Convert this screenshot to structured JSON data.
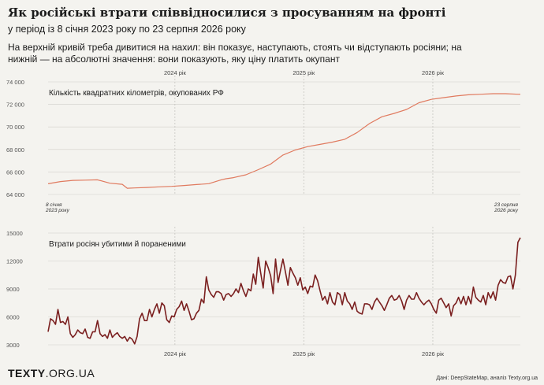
{
  "header": {
    "title": "Як російські втрати співвідносилися з просуванням на фронті",
    "subtitle": "у період із 8 січня 2023 року по 23 серпня 2026 року",
    "description": "На верхній кривій треба дивитися на нахил: він показує, наступають, стоять чи відступають росіяни; на нижній — на абсолютні значення: вони показують, яку ціну платить окупант"
  },
  "footer": {
    "logo_bold": "TEXTY",
    "logo_light": ".ORG.UA",
    "source": "Дані: DeepStateMap, аналіз Texty.org.ua"
  },
  "colors": {
    "top_line": "#e07a5f",
    "bottom_line": "#7a1f1f",
    "grid": "#d0cfca"
  },
  "chart_data": [
    {
      "type": "line",
      "title": "Кількість квадратних кілометрів, окупованих РФ",
      "x_unit": "weeks from 8 січня 2023",
      "ylim": [
        64000,
        74000
      ],
      "yticks": [
        64000,
        66000,
        68000,
        70000,
        72000,
        74000
      ],
      "ytick_labels": [
        "64 000",
        "66 000",
        "68 000",
        "70 000",
        "72 000",
        "74 000"
      ],
      "year_labels": [
        {
          "label": "2024 рік",
          "week": 51.3
        },
        {
          "label": "2025 рік",
          "week": 103.4
        },
        {
          "label": "2026 рік",
          "week": 155.6
        }
      ],
      "annotations": {
        "start_line1": "8 січня",
        "start_line2": "2023 року",
        "end_line1": "23 серпня",
        "end_line2": "2026 року"
      },
      "grid": true,
      "x": [
        0,
        5,
        10,
        15,
        20,
        25,
        30,
        32,
        35,
        40,
        45,
        50,
        55,
        60,
        65,
        70,
        72,
        75,
        80,
        85,
        90,
        95,
        100,
        105,
        110,
        115,
        120,
        125,
        130,
        135,
        140,
        145,
        150,
        155,
        160,
        165,
        170,
        175,
        180,
        185,
        190,
        191
      ],
      "values": [
        64950,
        65150,
        65250,
        65270,
        65300,
        65000,
        64900,
        64550,
        64580,
        64620,
        64680,
        64720,
        64800,
        64880,
        64960,
        65300,
        65400,
        65500,
        65750,
        66200,
        66700,
        67500,
        67950,
        68250,
        68450,
        68650,
        68900,
        69500,
        70300,
        70900,
        71200,
        71550,
        72150,
        72450,
        72600,
        72750,
        72850,
        72900,
        72950,
        72950,
        72900,
        72900
      ]
    },
    {
      "type": "line",
      "title": "Втрати росіян убитими й пораненими",
      "x_unit": "weeks from 8 січня 2023",
      "ylim": [
        3000,
        15000
      ],
      "yticks": [
        3000,
        6000,
        9000,
        12000,
        15000
      ],
      "ytick_labels": [
        "3000",
        "6000",
        "9000",
        "12000",
        "15000"
      ],
      "year_labels": [
        {
          "label": "2024 рік",
          "week": 51.3
        },
        {
          "label": "2025 рік",
          "week": 103.4
        },
        {
          "label": "2026 рік",
          "week": 155.6
        }
      ],
      "grid": true,
      "values": [
        4400,
        5800,
        5600,
        5200,
        6800,
        5400,
        5500,
        5200,
        6000,
        4200,
        3800,
        4100,
        4600,
        4300,
        4200,
        4700,
        3800,
        3700,
        4400,
        4400,
        5600,
        4200,
        3900,
        4100,
        3700,
        4600,
        3800,
        4100,
        4300,
        3900,
        3700,
        3900,
        3400,
        3800,
        3600,
        3100,
        3900,
        5800,
        6400,
        5600,
        5600,
        6800,
        6000,
        6800,
        7400,
        6400,
        7500,
        7200,
        5700,
        5400,
        6100,
        6000,
        6800,
        7100,
        7700,
        6700,
        7400,
        6600,
        5700,
        5800,
        6400,
        6700,
        7900,
        7500,
        10300,
        8900,
        8400,
        8100,
        8700,
        8700,
        8500,
        7800,
        8400,
        8500,
        8200,
        8500,
        9000,
        8600,
        9600,
        8800,
        8200,
        9000,
        8800,
        10600,
        9500,
        12400,
        10700,
        9100,
        12000,
        11300,
        10400,
        8500,
        12200,
        9700,
        11000,
        12200,
        10800,
        9400,
        11300,
        10700,
        10200,
        9400,
        10200,
        8900,
        9200,
        8500,
        9300,
        9200,
        10500,
        9900,
        8800,
        7800,
        8200,
        7400,
        8600,
        7600,
        7300,
        8600,
        8400,
        7300,
        8600,
        7700,
        7400,
        6800,
        7600,
        6600,
        6400,
        6300,
        7400,
        7400,
        7300,
        6800,
        7600,
        8000,
        7600,
        7200,
        6700,
        7300,
        8000,
        8300,
        7800,
        7900,
        8300,
        7700,
        6800,
        7800,
        8300,
        7900,
        7900,
        8600,
        8000,
        7600,
        7300,
        7600,
        7800,
        7400,
        6800,
        6400,
        7800,
        8000,
        7500,
        7000,
        7400,
        6100,
        7200,
        7500,
        8100,
        7400,
        8200,
        7300,
        8200,
        7400,
        9200,
        8100,
        7800,
        7600,
        8300,
        7300,
        8600,
        8000,
        8700,
        7800,
        9400,
        10000,
        9700,
        9600,
        10300,
        10400,
        9000,
        10500,
        14000,
        14500
      ]
    }
  ]
}
